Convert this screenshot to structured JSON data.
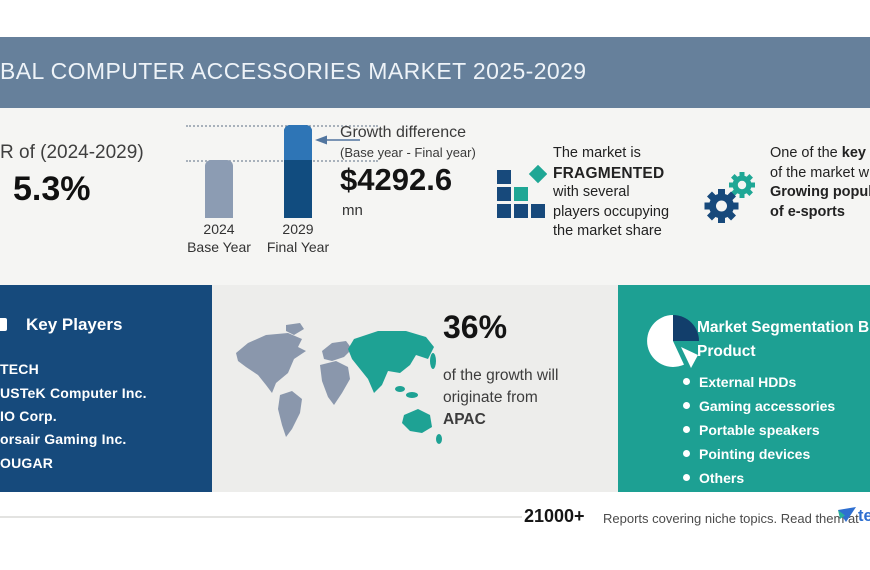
{
  "colors": {
    "header_band": "#66809B",
    "panel_light": "#F5F5F3",
    "map_panel": "#EDEDEB",
    "dark_blue": "#164A7C",
    "teal": "#1DA093",
    "bar_gray": "#8C9CB3",
    "bar_light_blue": "#2E75B6",
    "bar_dark_blue": "#114C7F",
    "pie_slice_navy": "#123E6B",
    "logo_blue": "#2E6FD0"
  },
  "header": {
    "title": "BAL COMPUTER ACCESSORIES MARKET 2025-2029"
  },
  "cagr": {
    "label": "R of (2024-2029)",
    "value": "5.3%"
  },
  "chart_data": {
    "type": "bar",
    "title": "Growth difference (Base year - Final year)",
    "categories": [
      "2024 Base Year",
      "2029 Final Year"
    ],
    "series": [
      {
        "name": "Market size (relative bar height)",
        "values": [
          0.62,
          1.0
        ]
      }
    ],
    "xlabels": [
      [
        "2024",
        "Base Year"
      ],
      [
        "2029",
        "Final Year"
      ]
    ],
    "annotations": {
      "growth_difference_value": "$4292.6",
      "growth_difference_unit": "mn",
      "cagr_2024_2029": "5.3%",
      "apac_growth_share": "36%"
    },
    "legend_position": "none",
    "grid": "dotted horizontal at both bar tops"
  },
  "growth": {
    "title": "Growth difference",
    "subtitle": "(Base year - Final year)",
    "value": "$4292.6",
    "unit": "mn"
  },
  "fragmented": {
    "line1": "The market is",
    "line2": "FRAGMENTED",
    "line3": "with several",
    "line4": "players occupying",
    "line5": "the market share"
  },
  "key_driver": {
    "line1_regular": "One of the ",
    "line1_bold": "key d",
    "line2": "of the market wil",
    "line3_bold": "Growing popula",
    "line4_bold": "of e-sports"
  },
  "key_players": {
    "title": "Key Players",
    "items": [
      "TECH",
      "USTeK Computer Inc.",
      "IO Corp.",
      "orsair Gaming Inc.",
      "OUGAR"
    ]
  },
  "regional": {
    "percent": "36%",
    "line1": "of the growth will",
    "line2": "originate from",
    "region": "APAC"
  },
  "segmentation": {
    "title_line1": "Market Segmentation B",
    "title_line2": "Product",
    "items": [
      "External HDDs",
      "Gaming accessories",
      "Portable speakers",
      "Pointing devices",
      "Others"
    ]
  },
  "footer": {
    "count": "21000+",
    "text": "Reports covering niche topics. Read them at",
    "logo_text": "te"
  }
}
